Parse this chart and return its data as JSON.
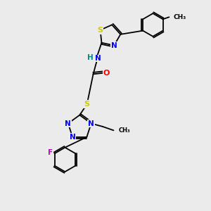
{
  "bg_color": "#ebebeb",
  "atom_colors": {
    "C": "#000000",
    "N": "#0000ee",
    "S": "#cccc00",
    "O": "#ff0000",
    "F": "#cc00cc",
    "H": "#008888"
  },
  "bond_color": "#000000",
  "font_size": 7.5
}
